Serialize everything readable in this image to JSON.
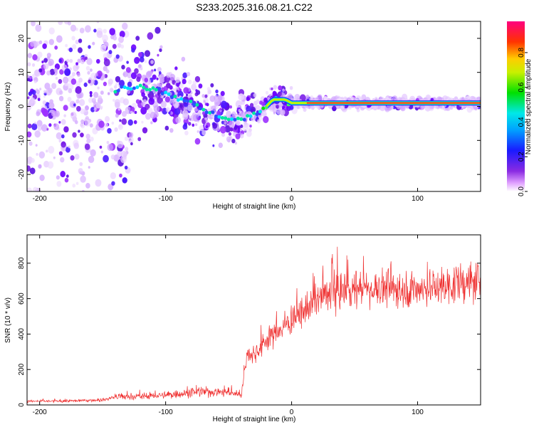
{
  "chart_data": [
    {
      "type": "heatmap",
      "title": "S233.2025.316.08.21.C22",
      "xlabel": "Height of straight line (km)",
      "ylabel": "Frequency (Hz)",
      "xlim": [
        -210,
        150
      ],
      "ylim": [
        -25,
        25
      ],
      "xticks": [
        -200,
        -100,
        0,
        100
      ],
      "xtick_labels": [
        "-200",
        "-100",
        "0",
        "100"
      ],
      "yticks": [
        -20,
        -10,
        0,
        10,
        20
      ],
      "ytick_labels": [
        "-20",
        "-10",
        "0",
        "10",
        "20"
      ],
      "colorbar": {
        "label": "Normalized spectral amplitude",
        "range": [
          0.0,
          0.98
        ],
        "ticks": [
          0.0,
          0.2,
          0.4,
          0.6,
          0.8
        ],
        "tick_labels": [
          "0.0",
          "0.2",
          "0.4",
          "0.6",
          "0.8"
        ],
        "colormap": "rainbow (white-violet-blue-cyan-green-yellow-red-magenta)"
      },
      "ridge": {
        "description": "Dominant frequency track vs height",
        "x": [
          -140,
          -120,
          -105,
          -95,
          -85,
          -75,
          -65,
          -55,
          -45,
          -35,
          -25,
          -15,
          -5,
          0,
          10,
          20,
          50,
          100,
          150
        ],
        "y": [
          5,
          6,
          5,
          3,
          2,
          0,
          -2,
          -3,
          -4,
          -3,
          -2,
          2,
          2,
          1,
          1,
          1,
          1,
          1,
          1
        ]
      }
    },
    {
      "type": "line",
      "xlabel": "Height of straight line (km)",
      "ylabel": "SNR (10 * v/v)",
      "xlim": [
        -210,
        150
      ],
      "ylim": [
        0,
        960
      ],
      "xticks": [
        -200,
        -100,
        0,
        100
      ],
      "xtick_labels": [
        "-200",
        "-100",
        "0",
        "100"
      ],
      "yticks": [
        0,
        200,
        400,
        600,
        800
      ],
      "ytick_labels": [
        "0",
        "200",
        "400",
        "600",
        "800"
      ],
      "series": [
        {
          "name": "SNR",
          "color": "#ef3030",
          "x": [
            -210,
            -180,
            -150,
            -140,
            -130,
            -100,
            -80,
            -60,
            -40,
            -35,
            -30,
            -25,
            -20,
            -10,
            0,
            10,
            20,
            40,
            60,
            80,
            100,
            120,
            140,
            150
          ],
          "y": [
            20,
            22,
            28,
            45,
            45,
            55,
            70,
            75,
            60,
            300,
            280,
            320,
            370,
            420,
            480,
            520,
            600,
            650,
            660,
            660,
            650,
            670,
            690,
            700
          ]
        }
      ]
    }
  ],
  "colors": {
    "line": "#ef3030",
    "axes": "#000000"
  }
}
